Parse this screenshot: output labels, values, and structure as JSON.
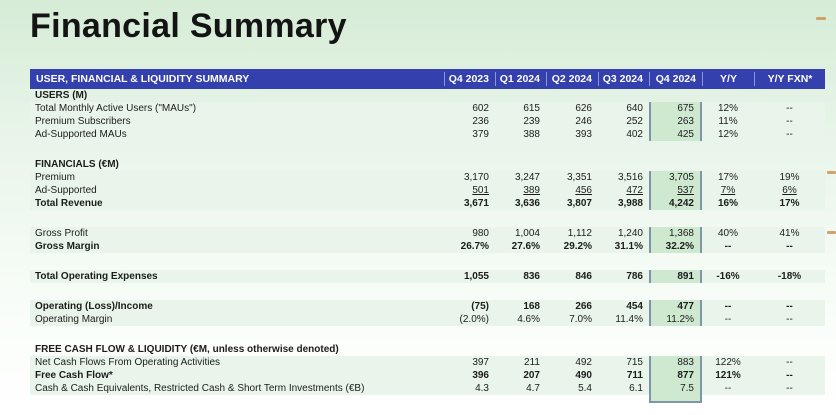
{
  "page": {
    "title": "Financial Summary"
  },
  "table": {
    "title": "USER, FINANCIAL & LIQUIDITY SUMMARY",
    "columns": [
      "Q4 2023",
      "Q1 2024",
      "Q2 2024",
      "Q3 2024",
      "Q4 2024",
      "Y/Y",
      "Y/Y FXN*"
    ],
    "highlight_column": "Q4 2024",
    "rows": [
      {
        "type": "section",
        "label": "USERS (M)"
      },
      {
        "type": "data",
        "label": "Total Monthly Active Users (\"MAUs\")",
        "values": [
          "602",
          "615",
          "626",
          "640",
          "675",
          "12%",
          "--"
        ]
      },
      {
        "type": "data",
        "label": "Premium Subscribers",
        "values": [
          "236",
          "239",
          "246",
          "252",
          "263",
          "11%",
          "--"
        ]
      },
      {
        "type": "data",
        "label": "Ad-Supported MAUs",
        "values": [
          "379",
          "388",
          "393",
          "402",
          "425",
          "12%",
          "--"
        ]
      },
      {
        "type": "spacer"
      },
      {
        "type": "section",
        "label": "FINANCIALS (€M)"
      },
      {
        "type": "data",
        "label": "Premium",
        "values": [
          "3,170",
          "3,247",
          "3,351",
          "3,516",
          "3,705",
          "17%",
          "19%"
        ]
      },
      {
        "type": "data",
        "label": "Ad-Supported",
        "underline": true,
        "values": [
          "501",
          "389",
          "456",
          "472",
          "537",
          "7%",
          "6%"
        ]
      },
      {
        "type": "data",
        "label": "Total Revenue",
        "bold": true,
        "values": [
          "3,671",
          "3,636",
          "3,807",
          "3,988",
          "4,242",
          "16%",
          "17%"
        ]
      },
      {
        "type": "spacer"
      },
      {
        "type": "data",
        "label": "Gross Profit",
        "values": [
          "980",
          "1,004",
          "1,112",
          "1,240",
          "1,368",
          "40%",
          "41%"
        ]
      },
      {
        "type": "data",
        "label": "Gross Margin",
        "bold": true,
        "values": [
          "26.7%",
          "27.6%",
          "29.2%",
          "31.1%",
          "32.2%",
          "--",
          "--"
        ]
      },
      {
        "type": "spacer"
      },
      {
        "type": "data",
        "label": "Total Operating Expenses",
        "bold": true,
        "values": [
          "1,055",
          "836",
          "846",
          "786",
          "891",
          "-16%",
          "-18%"
        ]
      },
      {
        "type": "spacer"
      },
      {
        "type": "data",
        "label": "Operating (Loss)/Income",
        "bold": true,
        "values": [
          "(75)",
          "168",
          "266",
          "454",
          "477",
          "--",
          "--"
        ]
      },
      {
        "type": "data",
        "label": "Operating Margin",
        "values": [
          "(2.0%)",
          "4.6%",
          "7.0%",
          "11.4%",
          "11.2%",
          "--",
          "--"
        ]
      },
      {
        "type": "spacer"
      },
      {
        "type": "section",
        "label": "FREE CASH FLOW & LIQUIDITY (€M, unless otherwise denoted)"
      },
      {
        "type": "data",
        "label": "Net Cash Flows From Operating Activities",
        "values": [
          "397",
          "211",
          "492",
          "715",
          "883",
          "122%",
          "--"
        ]
      },
      {
        "type": "data",
        "label": "Free Cash Flow*",
        "bold": true,
        "values": [
          "396",
          "207",
          "490",
          "711",
          "877",
          "121%",
          "--"
        ]
      },
      {
        "type": "data",
        "label": "Cash & Cash Equivalents, Restricted Cash & Short Term Investments (€B)",
        "values": [
          "4.3",
          "4.7",
          "5.4",
          "6.1",
          "7.5",
          "--",
          "--"
        ]
      }
    ]
  },
  "colors": {
    "background_top": "#d5ecd6",
    "header_bar": "#3340ad",
    "row_band": "#e9f5ea",
    "highlight_fill": "#cfe9d1",
    "highlight_border": "#7e97a8",
    "edge_mark": "#cfa36b"
  }
}
